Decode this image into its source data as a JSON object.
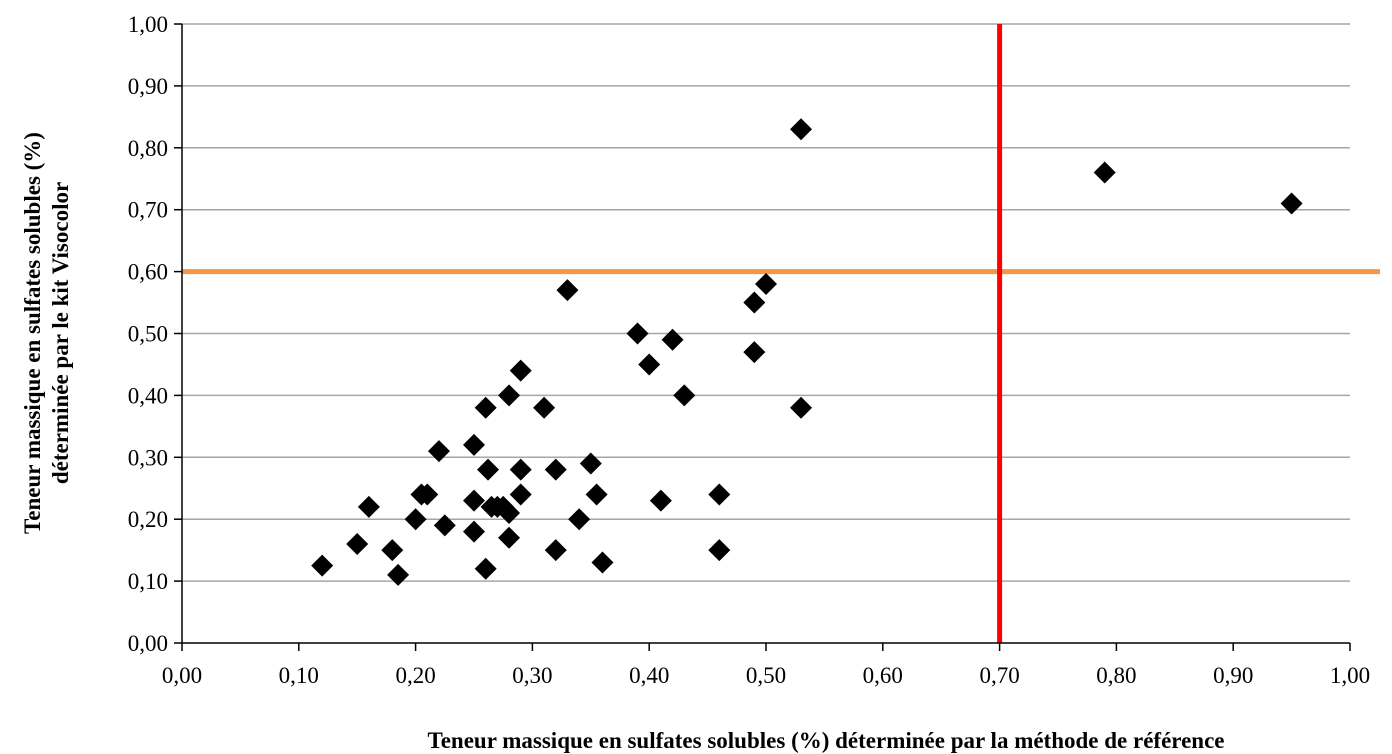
{
  "chart_data": {
    "type": "scatter",
    "title": "",
    "xlabel": "Teneur massique en sulfates solubles (%) déterminée par la méthode de référence",
    "ylabel_lines": [
      "Teneur massique en sulfates solubles (%)",
      "déterminée par le kit Visocolor"
    ],
    "xlim": [
      0,
      1
    ],
    "ylim": [
      0,
      1
    ],
    "x_ticks": [
      0.0,
      0.1,
      0.2,
      0.3,
      0.4,
      0.5,
      0.6,
      0.7,
      0.8,
      0.9,
      1.0
    ],
    "y_ticks": [
      0.0,
      0.1,
      0.2,
      0.3,
      0.4,
      0.5,
      0.6,
      0.7,
      0.8,
      0.9,
      1.0
    ],
    "x_tick_labels": [
      "0,00",
      "0,10",
      "0,20",
      "0,30",
      "0,40",
      "0,50",
      "0,60",
      "0,70",
      "0,80",
      "0,90",
      "1,00"
    ],
    "y_tick_labels": [
      "0,00",
      "0,10",
      "0,20",
      "0,30",
      "0,40",
      "0,50",
      "0,60",
      "0,70",
      "0,80",
      "0,90",
      "1,00"
    ],
    "grid": "horizontal",
    "marker": "diamond",
    "marker_color": "#000000",
    "reference_lines": [
      {
        "orientation": "horizontal",
        "value": 0.6,
        "color": "#f79646"
      },
      {
        "orientation": "vertical",
        "value": 0.7,
        "color": "#ff0000"
      }
    ],
    "points": [
      [
        0.12,
        0.125
      ],
      [
        0.15,
        0.16
      ],
      [
        0.16,
        0.22
      ],
      [
        0.18,
        0.15
      ],
      [
        0.185,
        0.11
      ],
      [
        0.2,
        0.2
      ],
      [
        0.205,
        0.24
      ],
      [
        0.21,
        0.24
      ],
      [
        0.22,
        0.31
      ],
      [
        0.225,
        0.19
      ],
      [
        0.25,
        0.32
      ],
      [
        0.25,
        0.23
      ],
      [
        0.25,
        0.18
      ],
      [
        0.26,
        0.38
      ],
      [
        0.26,
        0.12
      ],
      [
        0.262,
        0.28
      ],
      [
        0.265,
        0.22
      ],
      [
        0.27,
        0.22
      ],
      [
        0.275,
        0.22
      ],
      [
        0.28,
        0.4
      ],
      [
        0.28,
        0.21
      ],
      [
        0.28,
        0.17
      ],
      [
        0.29,
        0.44
      ],
      [
        0.29,
        0.28
      ],
      [
        0.29,
        0.24
      ],
      [
        0.31,
        0.38
      ],
      [
        0.32,
        0.28
      ],
      [
        0.32,
        0.15
      ],
      [
        0.33,
        0.57
      ],
      [
        0.34,
        0.2
      ],
      [
        0.35,
        0.29
      ],
      [
        0.355,
        0.24
      ],
      [
        0.36,
        0.13
      ],
      [
        0.39,
        0.5
      ],
      [
        0.4,
        0.45
      ],
      [
        0.41,
        0.23
      ],
      [
        0.42,
        0.49
      ],
      [
        0.43,
        0.4
      ],
      [
        0.46,
        0.24
      ],
      [
        0.46,
        0.15
      ],
      [
        0.49,
        0.55
      ],
      [
        0.49,
        0.47
      ],
      [
        0.5,
        0.58
      ],
      [
        0.53,
        0.83
      ],
      [
        0.53,
        0.38
      ],
      [
        0.79,
        0.76
      ],
      [
        0.95,
        0.71
      ]
    ]
  }
}
